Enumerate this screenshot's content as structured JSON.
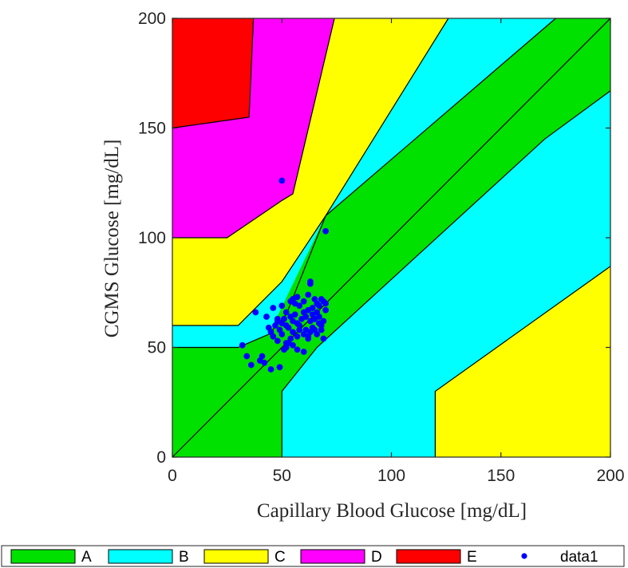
{
  "chart_data": {
    "type": "scatter",
    "title": "",
    "xlabel": "Capillary Blood Glucose [mg/dL]",
    "ylabel": "CGMS Glucose [mg/dL]",
    "xlim": [
      0,
      200
    ],
    "ylim": [
      0,
      200
    ],
    "xticks": [
      0,
      50,
      100,
      150,
      200
    ],
    "yticks": [
      0,
      50,
      100,
      150,
      200
    ],
    "grid": false,
    "legend_position": "bottom",
    "zone_colors": {
      "A": "#00e100",
      "B": "#00ffff",
      "C": "#ffff00",
      "D": "#ff00ff",
      "E": "#ff0000"
    },
    "marker_color": "#0000ff",
    "zones": [
      {
        "name": "A",
        "polygons": [
          [
            [
              0,
              0
            ],
            [
              50,
              0
            ],
            [
              50,
              30
            ],
            [
              120,
              30
            ],
            [
              120,
              0
            ],
            [
              200,
              0
            ],
            [
              200,
              200
            ],
            [
              0,
              200
            ]
          ]
        ]
      },
      {
        "name": "B",
        "polygons": [
          [
            [
              0,
              50
            ],
            [
              30,
              50
            ],
            [
              45,
              60
            ],
            [
              53,
              65
            ],
            [
              60,
              70
            ],
            [
              55,
              70
            ],
            [
              35,
              60
            ],
            [
              0,
              60
            ]
          ],
          [
            [
              30,
              60
            ],
            [
              44,
              66
            ],
            [
              48,
              69
            ],
            [
              66,
              98
            ],
            [
              70,
              110
            ],
            [
              140,
              170
            ],
            [
              153,
              200
            ],
            [
              200,
              200
            ],
            [
              200,
              200
            ],
            [
              200,
              0
            ],
            [
              50,
              0
            ],
            [
              50,
              30
            ],
            [
              55,
              50
            ],
            [
              140,
              150
            ],
            [
              175,
              200
            ],
            [
              170,
              200
            ],
            [
              126,
              200
            ],
            [
              70,
              110
            ],
            [
              59,
              80
            ],
            [
              52,
              65
            ],
            [
              45,
              60
            ]
          ],
          [
            [
              50,
              0
            ],
            [
              170,
              0
            ],
            [
              200,
              0
            ],
            [
              200,
              167
            ],
            [
              170,
              145
            ],
            [
              120,
              0
            ]
          ]
        ]
      }
    ],
    "series": [
      {
        "name": "data1",
        "points": [
          [
            50,
            126
          ],
          [
            70,
            103
          ],
          [
            38,
            66
          ],
          [
            43,
            64
          ],
          [
            46,
            68
          ],
          [
            48,
            63
          ],
          [
            50,
            69
          ],
          [
            52,
            66
          ],
          [
            54,
            71
          ],
          [
            55,
            72
          ],
          [
            56,
            70
          ],
          [
            57,
            73
          ],
          [
            58,
            69
          ],
          [
            60,
            71
          ],
          [
            62,
            74
          ],
          [
            63,
            79
          ],
          [
            63,
            80
          ],
          [
            64,
            68
          ],
          [
            65,
            72
          ],
          [
            66,
            70
          ],
          [
            67,
            69
          ],
          [
            68,
            72
          ],
          [
            69,
            71
          ],
          [
            70,
            70
          ],
          [
            44,
            59
          ],
          [
            45,
            57
          ],
          [
            47,
            60
          ],
          [
            48,
            62
          ],
          [
            49,
            58
          ],
          [
            50,
            61
          ],
          [
            51,
            63
          ],
          [
            52,
            60
          ],
          [
            53,
            59
          ],
          [
            54,
            64
          ],
          [
            55,
            62
          ],
          [
            56,
            65
          ],
          [
            57,
            61
          ],
          [
            58,
            60
          ],
          [
            59,
            63
          ],
          [
            60,
            66
          ],
          [
            61,
            64
          ],
          [
            62,
            67
          ],
          [
            63,
            62
          ],
          [
            64,
            65
          ],
          [
            65,
            63
          ],
          [
            66,
            66
          ],
          [
            67,
            64
          ],
          [
            68,
            60
          ],
          [
            69,
            62
          ],
          [
            70,
            67
          ],
          [
            46,
            55
          ],
          [
            48,
            53
          ],
          [
            50,
            56
          ],
          [
            52,
            52
          ],
          [
            54,
            54
          ],
          [
            55,
            57
          ],
          [
            57,
            55
          ],
          [
            58,
            58
          ],
          [
            60,
            56
          ],
          [
            61,
            58
          ],
          [
            62,
            54
          ],
          [
            64,
            59
          ],
          [
            66,
            56
          ],
          [
            68,
            58
          ],
          [
            69,
            54
          ],
          [
            32,
            51
          ],
          [
            34,
            46
          ],
          [
            36,
            42
          ],
          [
            40,
            44
          ],
          [
            41,
            46
          ],
          [
            42,
            43
          ],
          [
            45,
            40
          ],
          [
            49,
            41
          ],
          [
            51,
            49
          ],
          [
            52,
            50
          ],
          [
            53,
            52
          ],
          [
            55,
            51
          ],
          [
            57,
            49
          ],
          [
            60,
            48
          ],
          [
            62,
            55
          ],
          [
            63,
            57
          ],
          [
            65,
            58
          ],
          [
            67,
            61
          ]
        ]
      }
    ],
    "legend": [
      {
        "label": "A",
        "kind": "patch",
        "color": "#00e100"
      },
      {
        "label": "B",
        "kind": "patch",
        "color": "#00ffff"
      },
      {
        "label": "C",
        "kind": "patch",
        "color": "#ffff00"
      },
      {
        "label": "D",
        "kind": "patch",
        "color": "#ff00ff"
      },
      {
        "label": "E",
        "kind": "patch",
        "color": "#ff0000"
      },
      {
        "label": "data1",
        "kind": "marker",
        "color": "#0000ff"
      }
    ]
  }
}
